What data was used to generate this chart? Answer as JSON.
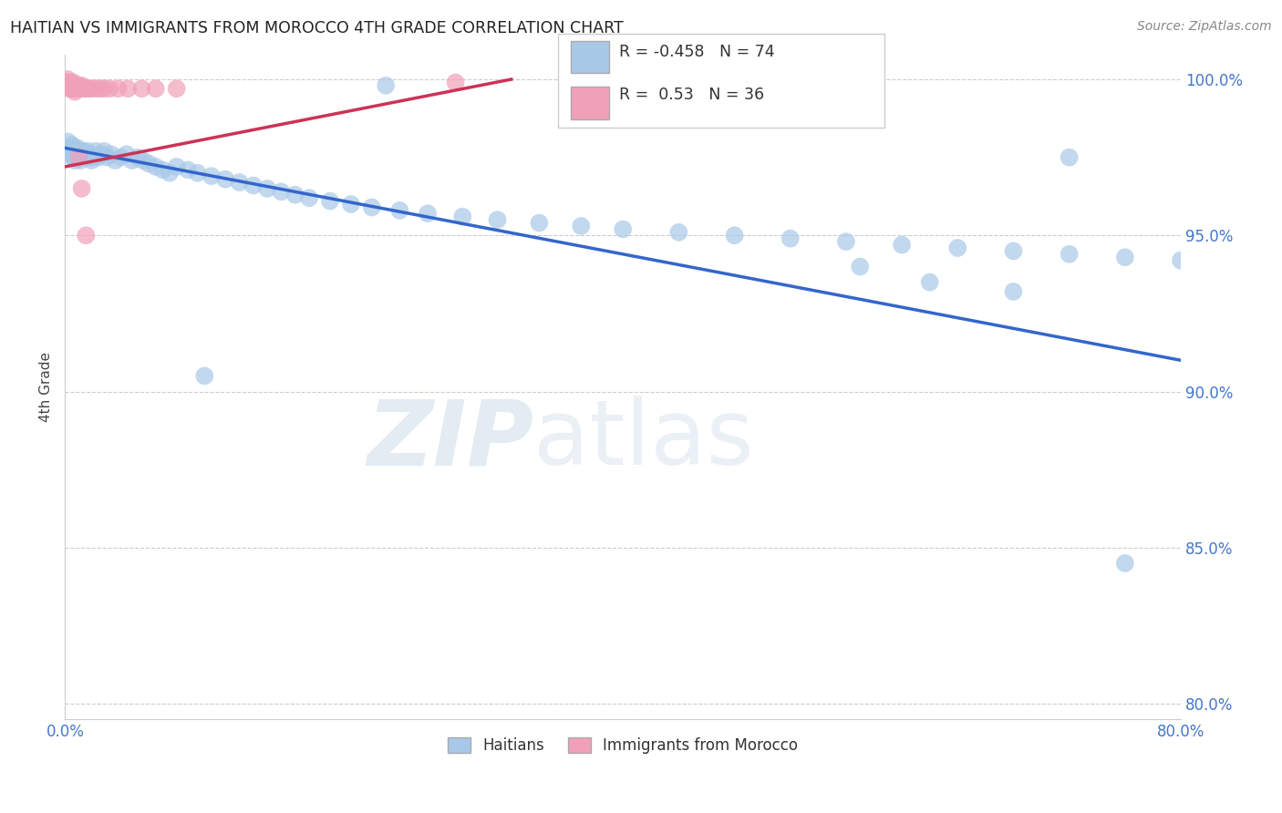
{
  "title": "HAITIAN VS IMMIGRANTS FROM MOROCCO 4TH GRADE CORRELATION CHART",
  "source": "Source: ZipAtlas.com",
  "ylabel": "4th Grade",
  "xlim": [
    0.0,
    0.8
  ],
  "ylim": [
    0.795,
    1.008
  ],
  "xticks": [
    0.0,
    0.1,
    0.2,
    0.3,
    0.4,
    0.5,
    0.6,
    0.7,
    0.8
  ],
  "xticklabels": [
    "0.0%",
    "",
    "",
    "",
    "",
    "",
    "",
    "",
    "80.0%"
  ],
  "yticks": [
    0.8,
    0.85,
    0.9,
    0.95,
    1.0
  ],
  "yticklabels": [
    "80.0%",
    "85.0%",
    "90.0%",
    "95.0%",
    "100.0%"
  ],
  "blue_R": -0.458,
  "blue_N": 74,
  "pink_R": 0.53,
  "pink_N": 36,
  "blue_color": "#a8c8e8",
  "pink_color": "#f0a0b8",
  "blue_line_color": "#3366cc",
  "pink_line_color": "#cc3355",
  "watermark_zip": "ZIP",
  "watermark_atlas": "atlas",
  "legend_label_blue": "Haitians",
  "legend_label_pink": "Immigrants from Morocco",
  "blue_scatter_x": [
    0.002,
    0.003,
    0.004,
    0.005,
    0.005,
    0.006,
    0.006,
    0.007,
    0.007,
    0.008,
    0.008,
    0.009,
    0.009,
    0.01,
    0.01,
    0.011,
    0.011,
    0.012,
    0.013,
    0.014,
    0.015,
    0.016,
    0.017,
    0.018,
    0.019,
    0.02,
    0.022,
    0.024,
    0.026,
    0.028,
    0.03,
    0.033,
    0.036,
    0.04,
    0.044,
    0.048,
    0.052,
    0.056,
    0.06,
    0.065,
    0.07,
    0.075,
    0.08,
    0.088,
    0.095,
    0.105,
    0.115,
    0.125,
    0.135,
    0.145,
    0.155,
    0.165,
    0.175,
    0.19,
    0.205,
    0.22,
    0.24,
    0.26,
    0.285,
    0.31,
    0.34,
    0.37,
    0.4,
    0.44,
    0.48,
    0.52,
    0.56,
    0.6,
    0.64,
    0.68,
    0.72,
    0.76,
    0.8,
    0.72
  ],
  "blue_scatter_y": [
    0.98,
    0.978,
    0.976,
    0.979,
    0.977,
    0.978,
    0.975,
    0.976,
    0.974,
    0.977,
    0.975,
    0.978,
    0.976,
    0.977,
    0.975,
    0.976,
    0.974,
    0.976,
    0.977,
    0.975,
    0.976,
    0.977,
    0.975,
    0.976,
    0.974,
    0.975,
    0.977,
    0.975,
    0.976,
    0.977,
    0.975,
    0.976,
    0.974,
    0.975,
    0.976,
    0.974,
    0.975,
    0.974,
    0.973,
    0.972,
    0.971,
    0.97,
    0.972,
    0.971,
    0.97,
    0.969,
    0.968,
    0.967,
    0.966,
    0.965,
    0.964,
    0.963,
    0.962,
    0.961,
    0.96,
    0.959,
    0.958,
    0.957,
    0.956,
    0.955,
    0.954,
    0.953,
    0.952,
    0.951,
    0.95,
    0.949,
    0.948,
    0.947,
    0.946,
    0.945,
    0.944,
    0.943,
    0.942,
    0.975
  ],
  "blue_extra_x": [
    0.23,
    0.1,
    0.57,
    0.62,
    0.68,
    0.76
  ],
  "blue_extra_y": [
    0.998,
    0.905,
    0.94,
    0.935,
    0.932,
    0.845
  ],
  "pink_scatter_x": [
    0.001,
    0.002,
    0.002,
    0.003,
    0.003,
    0.004,
    0.004,
    0.005,
    0.005,
    0.006,
    0.006,
    0.007,
    0.007,
    0.008,
    0.008,
    0.009,
    0.01,
    0.011,
    0.012,
    0.013,
    0.015,
    0.017,
    0.019,
    0.022,
    0.025,
    0.028,
    0.032,
    0.038,
    0.045,
    0.055,
    0.065,
    0.08,
    0.28,
    0.01,
    0.012,
    0.015
  ],
  "pink_scatter_y": [
    0.999,
    1.0,
    0.998,
    0.999,
    0.997,
    0.998,
    0.999,
    0.997,
    0.998,
    0.999,
    0.997,
    0.998,
    0.996,
    0.997,
    0.998,
    0.997,
    0.998,
    0.997,
    0.998,
    0.997,
    0.997,
    0.997,
    0.997,
    0.997,
    0.997,
    0.997,
    0.997,
    0.997,
    0.997,
    0.997,
    0.997,
    0.997,
    0.999,
    0.975,
    0.965,
    0.95
  ],
  "blue_trend_x": [
    0.0,
    0.8
  ],
  "blue_trend_y": [
    0.978,
    0.91
  ],
  "pink_trend_x": [
    0.0,
    0.32
  ],
  "pink_trend_y": [
    0.972,
    1.0
  ]
}
